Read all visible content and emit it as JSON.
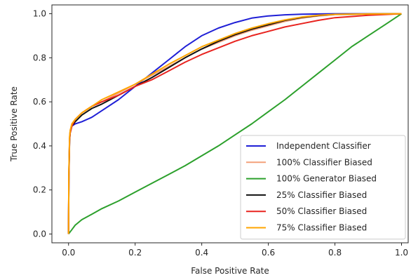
{
  "chart_data": {
    "type": "line",
    "title": "",
    "xlabel": "False Positive Rate",
    "ylabel": "True Positive Rate",
    "xlim": [
      -0.05,
      1.02
    ],
    "ylim": [
      -0.04,
      1.04
    ],
    "xticks": [
      0.0,
      0.2,
      0.4,
      0.6,
      0.8,
      1.0
    ],
    "xtick_labels": [
      "0.0",
      "0.2",
      "0.4",
      "0.6",
      "0.8",
      "1.0"
    ],
    "yticks": [
      0.0,
      0.2,
      0.4,
      0.6,
      0.8,
      1.0
    ],
    "ytick_labels": [
      "0.0",
      "0.2",
      "0.4",
      "0.6",
      "0.8",
      "1.0"
    ],
    "grid": false,
    "legend_position": "lower-right",
    "series": [
      {
        "name": "Independent Classifier",
        "color": "#1f1fd6",
        "x": [
          0,
          0.001,
          0.003,
          0.005,
          0.01,
          0.02,
          0.04,
          0.07,
          0.1,
          0.15,
          0.2,
          0.25,
          0.3,
          0.35,
          0.4,
          0.45,
          0.5,
          0.55,
          0.6,
          0.65,
          0.7,
          0.75,
          0.8,
          0.9,
          1.0
        ],
        "y": [
          0,
          0.25,
          0.42,
          0.47,
          0.49,
          0.5,
          0.51,
          0.53,
          0.56,
          0.61,
          0.67,
          0.73,
          0.79,
          0.85,
          0.9,
          0.935,
          0.96,
          0.98,
          0.99,
          0.995,
          0.998,
          0.999,
          1.0,
          1.0,
          1.0
        ]
      },
      {
        "name": "100% Classifier Biased",
        "color": "#f4a07a",
        "x": [
          0,
          0.001,
          0.003,
          0.005,
          0.01,
          0.02,
          0.04,
          0.07,
          0.1,
          0.15,
          0.2,
          0.25,
          0.3,
          0.35,
          0.4,
          0.45,
          0.5,
          0.55,
          0.6,
          0.65,
          0.7,
          0.75,
          0.8,
          0.9,
          1.0
        ],
        "y": [
          0,
          0.28,
          0.44,
          0.47,
          0.5,
          0.52,
          0.55,
          0.58,
          0.6,
          0.64,
          0.68,
          0.72,
          0.76,
          0.8,
          0.84,
          0.87,
          0.9,
          0.925,
          0.945,
          0.965,
          0.98,
          0.99,
          0.996,
          0.999,
          1.0
        ]
      },
      {
        "name": "100% Generator Biased",
        "color": "#2ca02c",
        "x": [
          0,
          0.005,
          0.01,
          0.02,
          0.04,
          0.07,
          0.1,
          0.15,
          0.2,
          0.25,
          0.3,
          0.35,
          0.4,
          0.45,
          0.5,
          0.55,
          0.6,
          0.65,
          0.7,
          0.75,
          0.8,
          0.85,
          0.9,
          0.95,
          1.0
        ],
        "y": [
          0,
          0.01,
          0.02,
          0.04,
          0.065,
          0.09,
          0.115,
          0.15,
          0.19,
          0.23,
          0.27,
          0.31,
          0.355,
          0.4,
          0.45,
          0.5,
          0.555,
          0.61,
          0.67,
          0.73,
          0.79,
          0.85,
          0.9,
          0.95,
          1.0
        ]
      },
      {
        "name": "25% Classifier Biased",
        "color": "#111111",
        "x": [
          0,
          0.001,
          0.003,
          0.005,
          0.01,
          0.02,
          0.04,
          0.07,
          0.1,
          0.15,
          0.2,
          0.25,
          0.3,
          0.35,
          0.4,
          0.45,
          0.5,
          0.55,
          0.6,
          0.65,
          0.7,
          0.75,
          0.8,
          0.9,
          1.0
        ],
        "y": [
          0,
          0.27,
          0.43,
          0.46,
          0.49,
          0.51,
          0.54,
          0.57,
          0.59,
          0.63,
          0.67,
          0.71,
          0.755,
          0.8,
          0.84,
          0.875,
          0.905,
          0.93,
          0.95,
          0.97,
          0.983,
          0.992,
          0.997,
          0.999,
          1.0
        ]
      },
      {
        "name": "50% Classifier Biased",
        "color": "#e8231f",
        "x": [
          0,
          0.001,
          0.003,
          0.005,
          0.01,
          0.02,
          0.04,
          0.07,
          0.1,
          0.15,
          0.2,
          0.25,
          0.3,
          0.35,
          0.4,
          0.45,
          0.5,
          0.55,
          0.6,
          0.65,
          0.7,
          0.75,
          0.8,
          0.9,
          1.0
        ],
        "y": [
          0,
          0.26,
          0.43,
          0.46,
          0.49,
          0.52,
          0.55,
          0.58,
          0.6,
          0.63,
          0.67,
          0.7,
          0.74,
          0.78,
          0.815,
          0.845,
          0.875,
          0.9,
          0.92,
          0.94,
          0.955,
          0.97,
          0.982,
          0.993,
          1.0
        ]
      },
      {
        "name": "75% Classifier Biased",
        "color": "#ffa500",
        "x": [
          0,
          0.001,
          0.003,
          0.005,
          0.01,
          0.02,
          0.04,
          0.07,
          0.1,
          0.15,
          0.2,
          0.25,
          0.3,
          0.35,
          0.4,
          0.45,
          0.5,
          0.55,
          0.6,
          0.65,
          0.7,
          0.75,
          0.8,
          0.9,
          1.0
        ],
        "y": [
          0,
          0.28,
          0.44,
          0.47,
          0.5,
          0.52,
          0.55,
          0.58,
          0.61,
          0.645,
          0.68,
          0.725,
          0.77,
          0.81,
          0.85,
          0.88,
          0.91,
          0.935,
          0.955,
          0.972,
          0.985,
          0.993,
          0.997,
          0.999,
          1.0
        ]
      }
    ]
  }
}
